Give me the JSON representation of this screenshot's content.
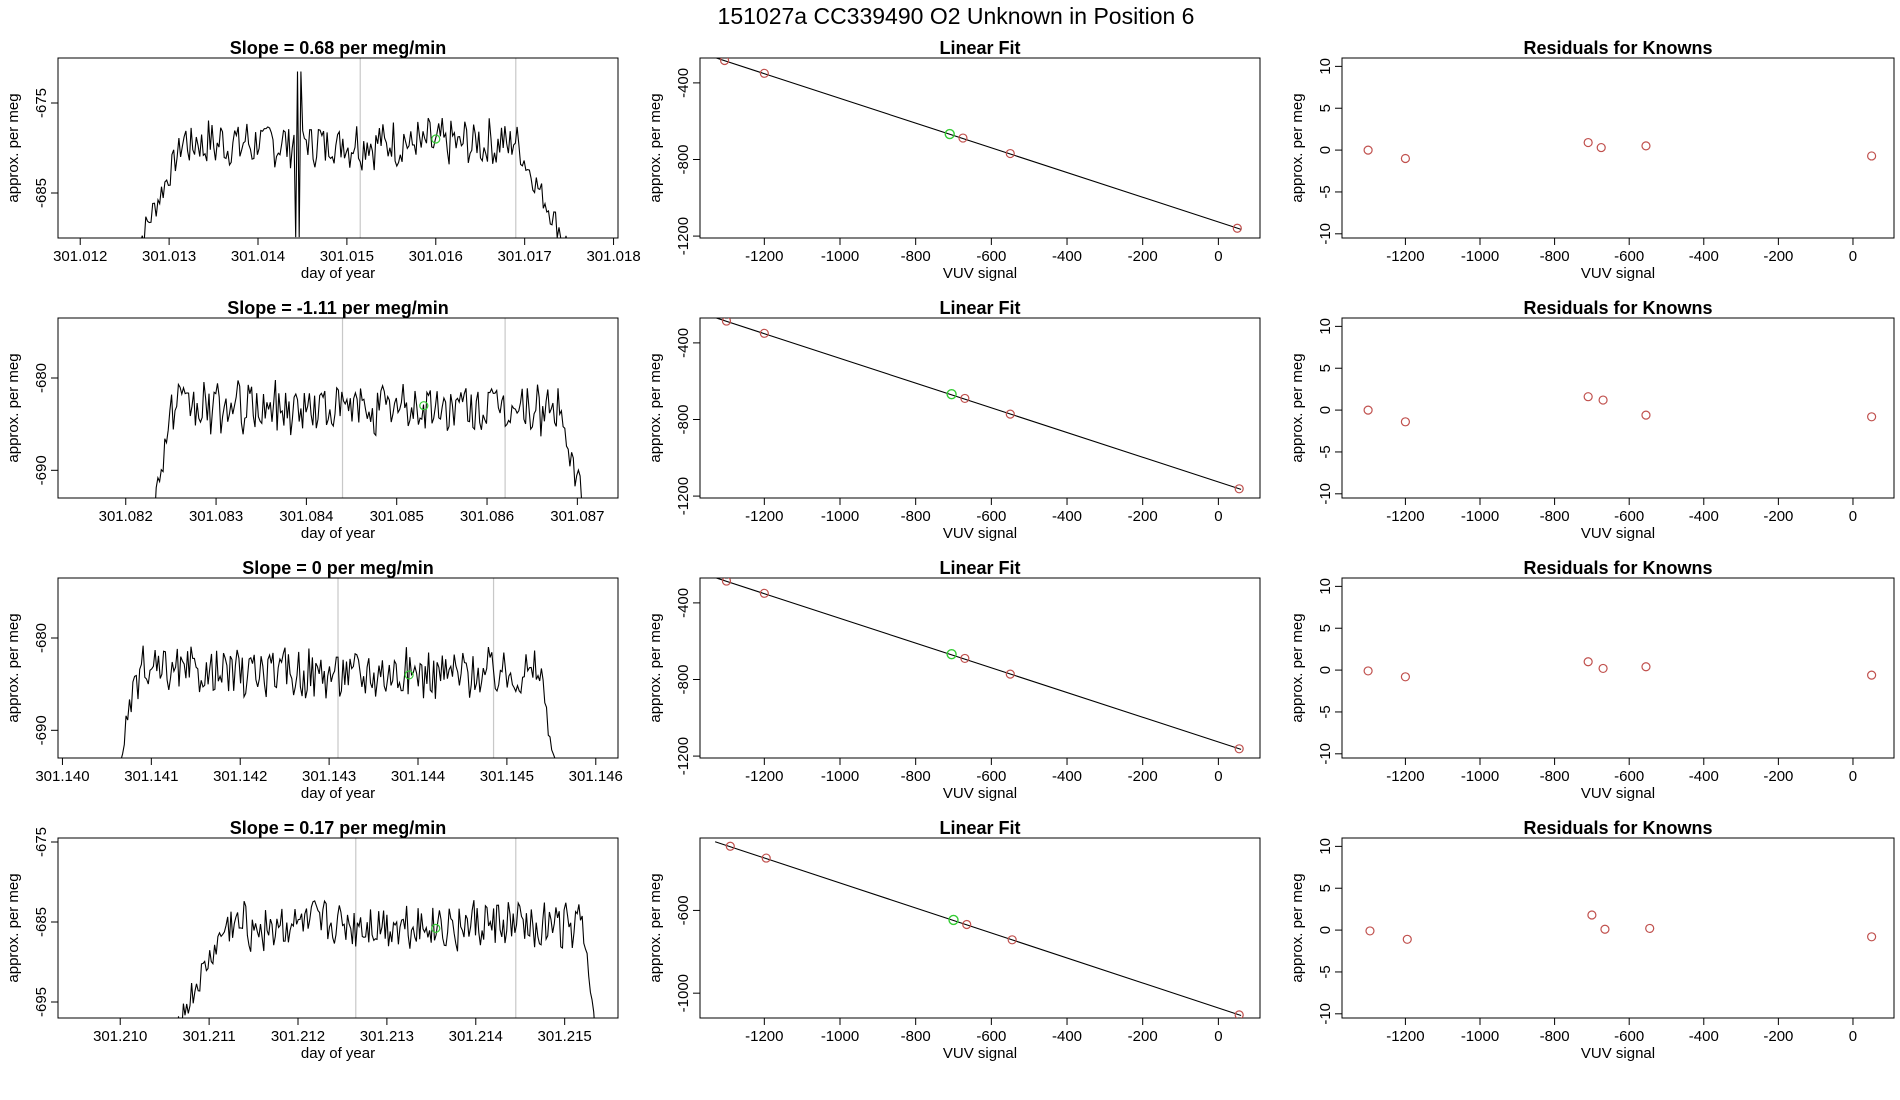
{
  "figure": {
    "title": "151027a      CC339490    O2 Unknown in Position  6"
  },
  "chart_data": [
    {
      "type": "line",
      "panel": "timeseries",
      "row": 0,
      "title": "Slope =  0.68  per meg/min",
      "xlabel": "day of year",
      "ylabel": "approx. per meg",
      "xlim": [
        301.01175,
        301.01805
      ],
      "ylim": [
        -690,
        -670
      ],
      "xticks": [
        301.012,
        301.013,
        301.014,
        301.015,
        301.016,
        301.017,
        301.018
      ],
      "yticks": [
        -675,
        -685
      ],
      "x_start": 301.0126,
      "x_end": 301.0177,
      "step_start": 301.01315,
      "step_end": 301.01695,
      "plateau": -679.5,
      "noise": 1.5,
      "spike": {
        "x": 301.01445,
        "amp": 8
      },
      "vlines": [
        301.01515,
        301.0169
      ],
      "marker": {
        "x": 301.016,
        "y": -679
      }
    },
    {
      "type": "scatter",
      "panel": "fit",
      "row": 0,
      "title": "Linear Fit",
      "xlabel": "VUV signal",
      "ylabel": "approx. per meg",
      "xlim": [
        -1370,
        110
      ],
      "ylim": [
        -1210,
        -270
      ],
      "xticks": [
        -1200,
        -1000,
        -800,
        -600,
        -400,
        -200,
        0
      ],
      "yticks": [
        -400,
        -800,
        -1200
      ],
      "fit_line": [
        [
          -1330,
          -268
        ],
        [
          60,
          -1165
        ]
      ],
      "points": [
        {
          "x": -1305,
          "y": -283
        },
        {
          "x": -1200,
          "y": -350
        },
        {
          "x": -675,
          "y": -688
        },
        {
          "x": -550,
          "y": -769
        },
        {
          "x": 50,
          "y": -1159
        }
      ],
      "unknown_point": {
        "x": -710,
        "y": -667
      }
    },
    {
      "type": "scatter",
      "panel": "residuals",
      "row": 0,
      "title": "Residuals for Knowns",
      "xlabel": "VUV signal",
      "ylabel": "approx. per meg",
      "xlim": [
        -1370,
        110
      ],
      "ylim": [
        -10.5,
        11
      ],
      "xticks": [
        -1200,
        -1000,
        -800,
        -600,
        -400,
        -200,
        0
      ],
      "yticks": [
        10,
        5,
        0,
        -5,
        -10
      ],
      "points": [
        {
          "x": -1300,
          "y": 0.0
        },
        {
          "x": -1200,
          "y": -1.0
        },
        {
          "x": -710,
          "y": 0.9
        },
        {
          "x": -675,
          "y": 0.3
        },
        {
          "x": -555,
          "y": 0.5
        },
        {
          "x": 50,
          "y": -0.7
        }
      ]
    },
    {
      "type": "line",
      "panel": "timeseries",
      "row": 1,
      "title": "Slope =  -1.11  per meg/min",
      "xlabel": "day of year",
      "ylabel": "approx. per meg",
      "xlim": [
        301.08125,
        301.08745
      ],
      "ylim": [
        -693,
        -673.5
      ],
      "xticks": [
        301.082,
        301.083,
        301.084,
        301.085,
        301.086,
        301.087
      ],
      "yticks": [
        -680,
        -690
      ],
      "x_start": 301.0823,
      "x_end": 301.0872,
      "step_start": 301.0825,
      "step_end": 301.0868,
      "plateau": -683.3,
      "noise": 1.6,
      "spike": null,
      "vlines": [
        301.0844,
        301.0862
      ],
      "marker": {
        "x": 301.0853,
        "y": -683
      }
    },
    {
      "type": "scatter",
      "panel": "fit",
      "row": 1,
      "title": "Linear Fit",
      "xlabel": "VUV signal",
      "ylabel": "approx. per meg",
      "xlim": [
        -1370,
        110
      ],
      "ylim": [
        -1210,
        -270
      ],
      "xticks": [
        -1200,
        -1000,
        -800,
        -600,
        -400,
        -200,
        0
      ],
      "yticks": [
        -400,
        -800,
        -1200
      ],
      "fit_line": [
        [
          -1330,
          -268
        ],
        [
          60,
          -1165
        ]
      ],
      "points": [
        {
          "x": -1300,
          "y": -286
        },
        {
          "x": -1200,
          "y": -350
        },
        {
          "x": -670,
          "y": -690
        },
        {
          "x": -550,
          "y": -772
        },
        {
          "x": 55,
          "y": -1162
        }
      ],
      "unknown_point": {
        "x": -705,
        "y": -668
      }
    },
    {
      "type": "scatter",
      "panel": "residuals",
      "row": 1,
      "title": "Residuals for Knowns",
      "xlabel": "VUV signal",
      "ylabel": "approx. per meg",
      "xlim": [
        -1370,
        110
      ],
      "ylim": [
        -10.5,
        11
      ],
      "xticks": [
        -1200,
        -1000,
        -800,
        -600,
        -400,
        -200,
        0
      ],
      "yticks": [
        10,
        5,
        0,
        -5,
        -10
      ],
      "points": [
        {
          "x": -1300,
          "y": 0.0
        },
        {
          "x": -1200,
          "y": -1.4
        },
        {
          "x": -710,
          "y": 1.6
        },
        {
          "x": -670,
          "y": 1.2
        },
        {
          "x": -555,
          "y": -0.6
        },
        {
          "x": 50,
          "y": -0.8
        }
      ]
    },
    {
      "type": "line",
      "panel": "timeseries",
      "row": 2,
      "title": "Slope =  0  per meg/min",
      "xlabel": "day of year",
      "ylabel": "approx. per meg",
      "xlim": [
        301.13995,
        301.14625
      ],
      "ylim": [
        -693,
        -673.5
      ],
      "xticks": [
        301.14,
        301.141,
        301.142,
        301.143,
        301.144,
        301.145,
        301.146
      ],
      "yticks": [
        -680,
        -690
      ],
      "x_start": 301.1406,
      "x_end": 301.1456,
      "step_start": 301.14085,
      "step_end": 301.1454,
      "plateau": -683.8,
      "noise": 1.5,
      "spike": null,
      "vlines": [
        301.1431,
        301.14485
      ],
      "marker": {
        "x": 301.1439,
        "y": -684
      }
    },
    {
      "type": "scatter",
      "panel": "fit",
      "row": 2,
      "title": "Linear Fit",
      "xlabel": "VUV signal",
      "ylabel": "approx. per meg",
      "xlim": [
        -1370,
        110
      ],
      "ylim": [
        -1210,
        -270
      ],
      "xticks": [
        -1200,
        -1000,
        -800,
        -600,
        -400,
        -200,
        0
      ],
      "yticks": [
        -400,
        -800,
        -1200
      ],
      "fit_line": [
        [
          -1330,
          -268
        ],
        [
          60,
          -1165
        ]
      ],
      "points": [
        {
          "x": -1300,
          "y": -286
        },
        {
          "x": -1200,
          "y": -350
        },
        {
          "x": -670,
          "y": -690
        },
        {
          "x": -550,
          "y": -772
        },
        {
          "x": 55,
          "y": -1162
        }
      ],
      "unknown_point": {
        "x": -705,
        "y": -668
      }
    },
    {
      "type": "scatter",
      "panel": "residuals",
      "row": 2,
      "title": "Residuals for Knowns",
      "xlabel": "VUV signal",
      "ylabel": "approx. per meg",
      "xlim": [
        -1370,
        110
      ],
      "ylim": [
        -10.5,
        11
      ],
      "xticks": [
        -1200,
        -1000,
        -800,
        -600,
        -400,
        -200,
        0
      ],
      "yticks": [
        10,
        5,
        0,
        -5,
        -10
      ],
      "points": [
        {
          "x": -1300,
          "y": -0.1
        },
        {
          "x": -1200,
          "y": -0.8
        },
        {
          "x": -710,
          "y": 1.0
        },
        {
          "x": -670,
          "y": 0.2
        },
        {
          "x": -555,
          "y": 0.4
        },
        {
          "x": 50,
          "y": -0.6
        }
      ]
    },
    {
      "type": "line",
      "panel": "timeseries",
      "row": 3,
      "title": "Slope =  0.17  per meg/min",
      "xlabel": "day of year",
      "ylabel": "approx. per meg",
      "xlim": [
        301.2093,
        301.2156
      ],
      "ylim": [
        -697,
        -674.5
      ],
      "xticks": [
        301.21,
        301.211,
        301.212,
        301.213,
        301.214,
        301.215
      ],
      "yticks": [
        -675,
        -685,
        -695
      ],
      "x_start": 301.2106,
      "x_end": 301.2154,
      "step_start": 301.2112,
      "step_end": 301.2152,
      "plateau": -685.5,
      "noise": 1.7,
      "spike": null,
      "vlines": [
        301.21265,
        301.21445
      ],
      "marker": {
        "x": 301.21355,
        "y": -685.8
      }
    },
    {
      "type": "scatter",
      "panel": "fit",
      "row": 3,
      "title": "Linear Fit",
      "xlabel": "VUV signal",
      "ylabel": "approx. per meg",
      "xlim": [
        -1370,
        110
      ],
      "ylim": [
        -1120,
        -250
      ],
      "xticks": [
        -1200,
        -1000,
        -800,
        -600,
        -400,
        -200,
        0
      ],
      "yticks": [
        -600,
        -1000
      ],
      "fit_line": [
        [
          -1330,
          -268
        ],
        [
          60,
          -1108
        ]
      ],
      "points": [
        {
          "x": -1290,
          "y": -290
        },
        {
          "x": -1195,
          "y": -347
        },
        {
          "x": -665,
          "y": -668
        },
        {
          "x": -545,
          "y": -742
        },
        {
          "x": 55,
          "y": -1105
        }
      ],
      "unknown_point": {
        "x": -700,
        "y": -646
      }
    },
    {
      "type": "scatter",
      "panel": "residuals",
      "row": 3,
      "title": "Residuals for Knowns",
      "xlabel": "VUV signal",
      "ylabel": "approx. per meg",
      "xlim": [
        -1370,
        110
      ],
      "ylim": [
        -10.5,
        11
      ],
      "xticks": [
        -1200,
        -1000,
        -800,
        -600,
        -400,
        -200,
        0
      ],
      "yticks": [
        10,
        5,
        0,
        -5,
        -10
      ],
      "points": [
        {
          "x": -1295,
          "y": -0.1
        },
        {
          "x": -1195,
          "y": -1.1
        },
        {
          "x": -700,
          "y": 1.8
        },
        {
          "x": -665,
          "y": 0.1
        },
        {
          "x": -545,
          "y": 0.2
        },
        {
          "x": 50,
          "y": -0.8
        }
      ]
    }
  ],
  "colors": {
    "line": "#000000",
    "vline": "#c8c8c8",
    "known_point": "#c0504d",
    "unknown_point": "#33cc33",
    "axis": "#000000"
  }
}
